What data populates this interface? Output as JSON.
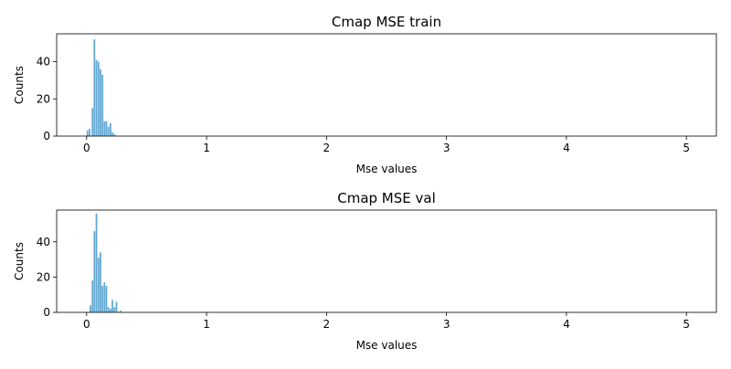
{
  "chart_data": [
    {
      "type": "bar",
      "title": "Cmap MSE train",
      "xlabel": "Mse values",
      "ylabel": "Counts",
      "xlim": [
        -0.25,
        5.25
      ],
      "ylim": [
        0,
        55
      ],
      "xticks": [
        0,
        1,
        2,
        3,
        4,
        5
      ],
      "xtick_labels": [
        "0",
        "1",
        "2",
        "3",
        "4",
        "5"
      ],
      "yticks": [
        0,
        20,
        40
      ],
      "ytick_labels": [
        "0",
        "20",
        "40"
      ],
      "bin_width": 0.0167,
      "color": "#5ba3cf",
      "bins": [
        {
          "x": 0.0,
          "y": 3
        },
        {
          "x": 0.017,
          "y": 4
        },
        {
          "x": 0.042,
          "y": 15
        },
        {
          "x": 0.058,
          "y": 52
        },
        {
          "x": 0.075,
          "y": 41
        },
        {
          "x": 0.092,
          "y": 40
        },
        {
          "x": 0.108,
          "y": 36
        },
        {
          "x": 0.125,
          "y": 33
        },
        {
          "x": 0.142,
          "y": 8
        },
        {
          "x": 0.158,
          "y": 8
        },
        {
          "x": 0.175,
          "y": 5
        },
        {
          "x": 0.192,
          "y": 7
        },
        {
          "x": 0.208,
          "y": 2
        },
        {
          "x": 0.225,
          "y": 1
        }
      ]
    },
    {
      "type": "bar",
      "title": "Cmap MSE val",
      "xlabel": "Mse values",
      "ylabel": "Counts",
      "xlim": [
        -0.25,
        5.25
      ],
      "ylim": [
        0,
        58
      ],
      "xticks": [
        0,
        1,
        2,
        3,
        4,
        5
      ],
      "xtick_labels": [
        "0",
        "1",
        "2",
        "3",
        "4",
        "5"
      ],
      "yticks": [
        0,
        20,
        40
      ],
      "ytick_labels": [
        "0",
        "20",
        "40"
      ],
      "bin_width": 0.0167,
      "color": "#5ba3cf",
      "bins": [
        {
          "x": 0.025,
          "y": 4
        },
        {
          "x": 0.042,
          "y": 18
        },
        {
          "x": 0.058,
          "y": 46
        },
        {
          "x": 0.075,
          "y": 56
        },
        {
          "x": 0.092,
          "y": 31
        },
        {
          "x": 0.108,
          "y": 34
        },
        {
          "x": 0.125,
          "y": 15
        },
        {
          "x": 0.142,
          "y": 17
        },
        {
          "x": 0.158,
          "y": 15
        },
        {
          "x": 0.175,
          "y": 3
        },
        {
          "x": 0.192,
          "y": 2
        },
        {
          "x": 0.208,
          "y": 7
        },
        {
          "x": 0.225,
          "y": 3
        },
        {
          "x": 0.242,
          "y": 6
        },
        {
          "x": 0.275,
          "y": 1
        }
      ]
    }
  ]
}
